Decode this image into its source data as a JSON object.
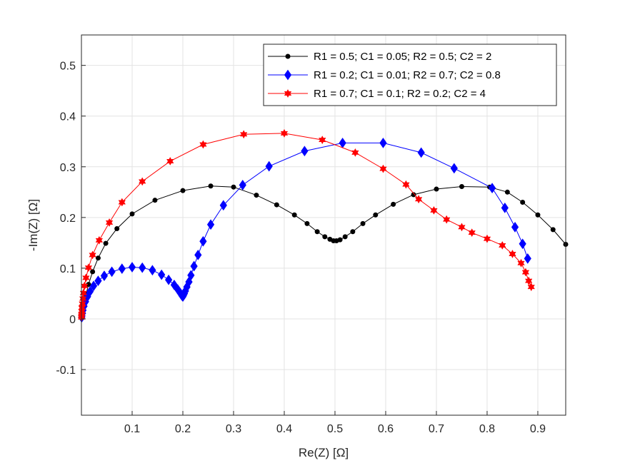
{
  "chart_data": {
    "type": "line",
    "title": "",
    "xlabel": "Re(Z) [Ω]",
    "ylabel": "-Im(Z) [Ω]",
    "xlim": [
      0,
      0.955
    ],
    "ylim": [
      -0.19,
      0.56
    ],
    "xticks": [
      0.1,
      0.2,
      0.3,
      0.4,
      0.5,
      0.6,
      0.7,
      0.8,
      0.9
    ],
    "xtick_labels": [
      "0.1",
      "0.2",
      "0.3",
      "0.4",
      "0.5",
      "0.6",
      "0.7",
      "0.8",
      "0.9"
    ],
    "yticks": [
      -0.1,
      0,
      0.1,
      0.2,
      0.3,
      0.4,
      0.5
    ],
    "ytick_labels": [
      "-0.1",
      "0",
      "0.1",
      "0.2",
      "0.3",
      "0.4",
      "0.5"
    ],
    "grid": true,
    "legend_position": "top-right",
    "series": [
      {
        "name": "R1 = 0.5; C1 = 0.05; R2 = 0.5; C2 = 2",
        "color": "#000000",
        "marker": "circle",
        "points": [
          [
            0.955,
            0.147
          ],
          [
            0.93,
            0.176
          ],
          [
            0.9,
            0.205
          ],
          [
            0.87,
            0.23
          ],
          [
            0.84,
            0.25
          ],
          [
            0.805,
            0.26
          ],
          [
            0.75,
            0.261
          ],
          [
            0.7,
            0.256
          ],
          [
            0.655,
            0.245
          ],
          [
            0.615,
            0.226
          ],
          [
            0.58,
            0.205
          ],
          [
            0.555,
            0.188
          ],
          [
            0.535,
            0.172
          ],
          [
            0.52,
            0.162
          ],
          [
            0.51,
            0.156
          ],
          [
            0.503,
            0.154
          ],
          [
            0.497,
            0.154
          ],
          [
            0.49,
            0.157
          ],
          [
            0.48,
            0.162
          ],
          [
            0.465,
            0.172
          ],
          [
            0.445,
            0.188
          ],
          [
            0.42,
            0.205
          ],
          [
            0.385,
            0.225
          ],
          [
            0.345,
            0.244
          ],
          [
            0.3,
            0.26
          ],
          [
            0.255,
            0.262
          ],
          [
            0.2,
            0.253
          ],
          [
            0.145,
            0.234
          ],
          [
            0.1,
            0.207
          ],
          [
            0.07,
            0.178
          ],
          [
            0.048,
            0.149
          ],
          [
            0.033,
            0.12
          ],
          [
            0.022,
            0.093
          ],
          [
            0.014,
            0.068
          ],
          [
            0.009,
            0.048
          ],
          [
            0.005,
            0.031
          ],
          [
            0.003,
            0.02
          ],
          [
            0.002,
            0.012
          ],
          [
            0.001,
            0.006
          ],
          [
            0.0005,
            0.003
          ]
        ]
      },
      {
        "name": "R1 = 0.2; C1 = 0.01; R2 = 0.7; C2 = 0.8",
        "color": "#0000ff",
        "marker": "diamond",
        "points": [
          [
            0.88,
            0.119
          ],
          [
            0.87,
            0.148
          ],
          [
            0.855,
            0.181
          ],
          [
            0.835,
            0.219
          ],
          [
            0.81,
            0.258
          ],
          [
            0.735,
            0.297
          ],
          [
            0.67,
            0.328
          ],
          [
            0.595,
            0.347
          ],
          [
            0.515,
            0.347
          ],
          [
            0.44,
            0.331
          ],
          [
            0.37,
            0.301
          ],
          [
            0.318,
            0.264
          ],
          [
            0.28,
            0.224
          ],
          [
            0.255,
            0.186
          ],
          [
            0.24,
            0.153
          ],
          [
            0.23,
            0.126
          ],
          [
            0.222,
            0.104
          ],
          [
            0.216,
            0.086
          ],
          [
            0.212,
            0.073
          ],
          [
            0.208,
            0.063
          ],
          [
            0.205,
            0.055
          ],
          [
            0.203,
            0.05
          ],
          [
            0.201,
            0.046
          ],
          [
            0.2,
            0.044
          ],
          [
            0.198,
            0.046
          ],
          [
            0.195,
            0.051
          ],
          [
            0.19,
            0.058
          ],
          [
            0.183,
            0.067
          ],
          [
            0.172,
            0.077
          ],
          [
            0.158,
            0.087
          ],
          [
            0.14,
            0.096
          ],
          [
            0.12,
            0.101
          ],
          [
            0.1,
            0.102
          ],
          [
            0.08,
            0.099
          ],
          [
            0.06,
            0.093
          ],
          [
            0.045,
            0.085
          ],
          [
            0.033,
            0.075
          ],
          [
            0.024,
            0.065
          ],
          [
            0.017,
            0.054
          ],
          [
            0.012,
            0.044
          ],
          [
            0.008,
            0.034
          ],
          [
            0.005,
            0.025
          ],
          [
            0.003,
            0.017
          ],
          [
            0.002,
            0.011
          ],
          [
            0.001,
            0.006
          ],
          [
            0.0005,
            0.003
          ]
        ]
      },
      {
        "name": "R1 = 0.7; C1 = 0.1; R2 = 0.2; C2 = 4",
        "color": "#ff0000",
        "marker": "hexagram",
        "points": [
          [
            0.887,
            0.063
          ],
          [
            0.882,
            0.075
          ],
          [
            0.876,
            0.092
          ],
          [
            0.867,
            0.11
          ],
          [
            0.85,
            0.128
          ],
          [
            0.83,
            0.145
          ],
          [
            0.8,
            0.158
          ],
          [
            0.77,
            0.17
          ],
          [
            0.75,
            0.181
          ],
          [
            0.72,
            0.196
          ],
          [
            0.695,
            0.214
          ],
          [
            0.665,
            0.236
          ],
          [
            0.64,
            0.265
          ],
          [
            0.595,
            0.296
          ],
          [
            0.54,
            0.328
          ],
          [
            0.475,
            0.353
          ],
          [
            0.4,
            0.366
          ],
          [
            0.32,
            0.364
          ],
          [
            0.24,
            0.344
          ],
          [
            0.175,
            0.311
          ],
          [
            0.12,
            0.271
          ],
          [
            0.08,
            0.23
          ],
          [
            0.055,
            0.19
          ],
          [
            0.035,
            0.155
          ],
          [
            0.022,
            0.126
          ],
          [
            0.014,
            0.101
          ],
          [
            0.009,
            0.081
          ],
          [
            0.006,
            0.065
          ],
          [
            0.004,
            0.051
          ],
          [
            0.003,
            0.04
          ],
          [
            0.002,
            0.03
          ],
          [
            0.001,
            0.022
          ],
          [
            0.0008,
            0.015
          ],
          [
            0.0005,
            0.01
          ],
          [
            0.0003,
            0.006
          ],
          [
            0.0002,
            0.003
          ]
        ]
      }
    ]
  }
}
